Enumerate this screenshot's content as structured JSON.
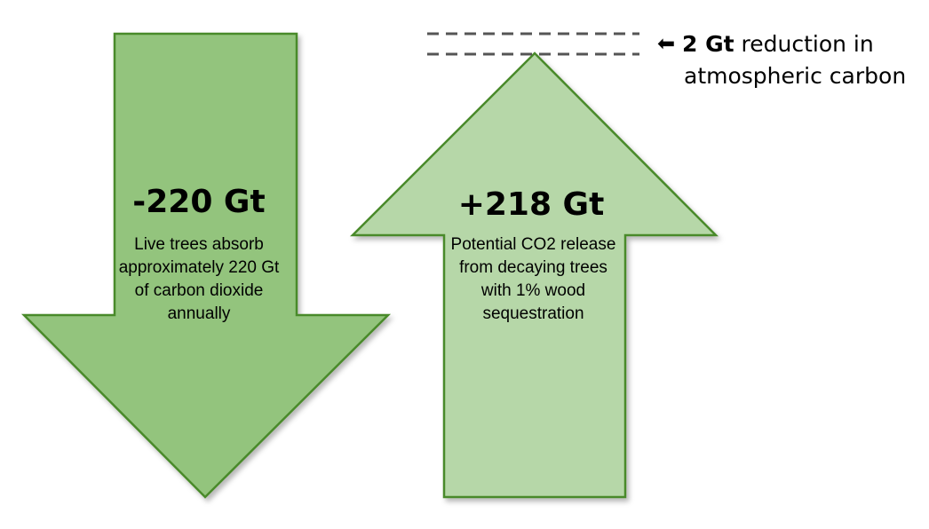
{
  "colors": {
    "down_arrow_fill": "#93c47d",
    "up_arrow_fill": "#b6d7a8",
    "arrow_stroke": "#4a8a2a",
    "dashed_line": "#555555"
  },
  "down_arrow": {
    "value": "-220 Gt",
    "description": "Live trees absorb approximately 220 Gt of carbon dioxide annually"
  },
  "up_arrow": {
    "value": "+218 Gt",
    "description": "Potential CO2 release from decaying trees with 1% wood sequestration"
  },
  "annotation": {
    "icon": "left-arrow-icon",
    "bold": "2 Gt",
    "line1_rest": " reduction in",
    "line2": "atmospheric carbon"
  }
}
